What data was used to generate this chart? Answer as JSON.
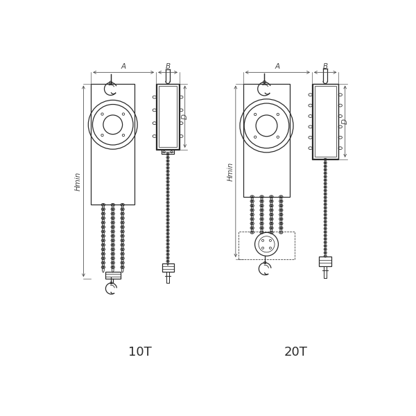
{
  "bg_color": "#ffffff",
  "line_color": "#2a2a2a",
  "dim_color": "#444444",
  "title_10t": "10T",
  "title_20t": "20T",
  "label_A": "A",
  "label_B": "B",
  "label_D": "D",
  "label_Hmin": "Hmin",
  "title_fontsize": 13,
  "dim_fontsize": 7.5
}
